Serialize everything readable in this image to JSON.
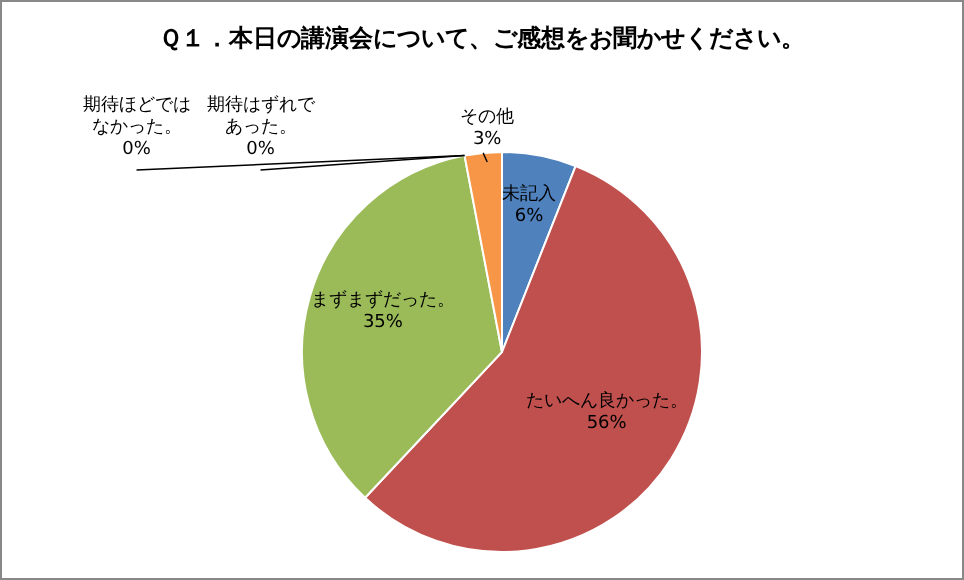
{
  "chart_data": {
    "type": "pie",
    "title": "Ｑ１．本日の講演会について、ご感想をお聞かせください。",
    "categories": [
      "未記入",
      "たいへん良かった。",
      "まずまずだった。",
      "期待ほどではなかった。",
      "期待はずれであった。",
      "その他"
    ],
    "values": [
      6,
      56,
      35,
      0,
      0,
      3
    ],
    "value_labels": [
      "6%",
      "56%",
      "35%",
      "0%",
      "0%",
      "3%"
    ],
    "colors": [
      "#4f81bd",
      "#c0504d",
      "#9bbb59",
      "#8064a2",
      "#4bacc6",
      "#f79646"
    ],
    "legend": false
  }
}
